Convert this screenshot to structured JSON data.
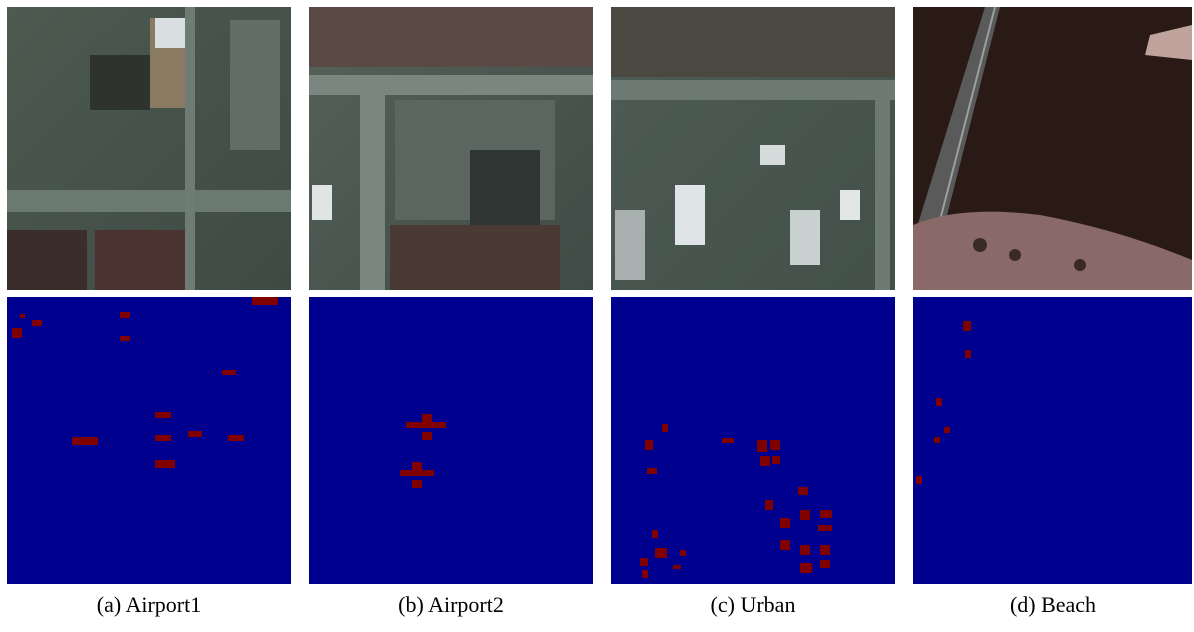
{
  "figure": {
    "panels": [
      {
        "caption": "(a) Airport1"
      },
      {
        "caption": "(b) Airport2"
      },
      {
        "caption": "(c) Urban"
      },
      {
        "caption": "(d) Beach"
      }
    ]
  }
}
